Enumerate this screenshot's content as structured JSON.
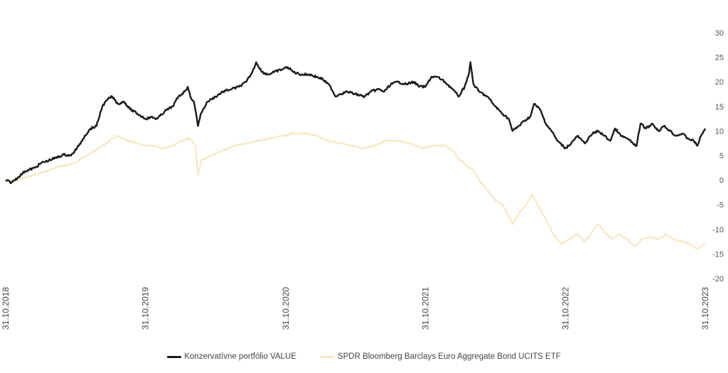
{
  "chart_data": {
    "type": "line",
    "title": "",
    "xlabel": "",
    "ylabel": "",
    "x_axis": {
      "type": "date",
      "range": [
        "2018-10-31",
        "2023-10-31"
      ],
      "tick_labels": [
        "31.10.2018",
        "31.10.2019",
        "31.10.2020",
        "31.10.2021",
        "31.10.2022",
        "31.10.2023"
      ]
    },
    "y_axis": {
      "position": "right",
      "ylim": [
        -20,
        30
      ],
      "ticks": [
        30,
        25,
        20,
        15,
        10,
        5,
        0,
        -5,
        -10,
        -15,
        -20
      ]
    },
    "grid": false,
    "legend": {
      "position": "bottom-center"
    },
    "series": [
      {
        "name": "Konzervatívne portfólio VALUE",
        "color": "#1a1a1a",
        "points": [
          [
            "2018-10-31",
            0
          ],
          [
            "2018-11-15",
            -0.5
          ],
          [
            "2018-12-01",
            0.5
          ],
          [
            "2018-12-20",
            1.8
          ],
          [
            "2019-01-15",
            2.5
          ],
          [
            "2019-02-01",
            3.5
          ],
          [
            "2019-02-20",
            4.0
          ],
          [
            "2019-03-10",
            4.5
          ],
          [
            "2019-04-01",
            5.2
          ],
          [
            "2019-04-20",
            5.0
          ],
          [
            "2019-05-10",
            7.0
          ],
          [
            "2019-05-25",
            9.0
          ],
          [
            "2019-06-10",
            10.5
          ],
          [
            "2019-06-25",
            11.0
          ],
          [
            "2019-07-10",
            15.0
          ],
          [
            "2019-07-25",
            16.5
          ],
          [
            "2019-08-05",
            17.0
          ],
          [
            "2019-08-20",
            15.5
          ],
          [
            "2019-09-05",
            16.0
          ],
          [
            "2019-09-20",
            14.5
          ],
          [
            "2019-10-10",
            13.5
          ],
          [
            "2019-10-31",
            12.5
          ],
          [
            "2019-11-15",
            12.8
          ],
          [
            "2019-12-01",
            12.5
          ],
          [
            "2019-12-20",
            14.0
          ],
          [
            "2020-01-10",
            15.0
          ],
          [
            "2020-01-25",
            17.0
          ],
          [
            "2020-02-10",
            18.0
          ],
          [
            "2020-02-18",
            19.0
          ],
          [
            "2020-02-25",
            17.0
          ],
          [
            "2020-03-05",
            16.0
          ],
          [
            "2020-03-12",
            13.0
          ],
          [
            "2020-03-16",
            11.0
          ],
          [
            "2020-03-23",
            13.5
          ],
          [
            "2020-04-10",
            16.0
          ],
          [
            "2020-05-01",
            17.0
          ],
          [
            "2020-05-20",
            18.0
          ],
          [
            "2020-06-10",
            18.5
          ],
          [
            "2020-07-01",
            19.0
          ],
          [
            "2020-07-20",
            20.0
          ],
          [
            "2020-08-05",
            22.0
          ],
          [
            "2020-08-15",
            24.0
          ],
          [
            "2020-08-30",
            22.0
          ],
          [
            "2020-09-15",
            21.5
          ],
          [
            "2020-10-01",
            22.0
          ],
          [
            "2020-10-20",
            22.5
          ],
          [
            "2020-11-05",
            23.0
          ],
          [
            "2020-11-20",
            22.0
          ],
          [
            "2020-12-10",
            21.5
          ],
          [
            "2021-01-01",
            21.5
          ],
          [
            "2021-01-20",
            21.0
          ],
          [
            "2021-02-05",
            20.5
          ],
          [
            "2021-02-25",
            19.0
          ],
          [
            "2021-03-10",
            17.0
          ],
          [
            "2021-03-20",
            17.5
          ],
          [
            "2021-04-10",
            18.0
          ],
          [
            "2021-05-01",
            17.5
          ],
          [
            "2021-05-25",
            17.0
          ],
          [
            "2021-06-10",
            18.0
          ],
          [
            "2021-06-30",
            18.5
          ],
          [
            "2021-07-15",
            18.0
          ],
          [
            "2021-08-01",
            19.5
          ],
          [
            "2021-08-20",
            20.0
          ],
          [
            "2021-09-10",
            19.5
          ],
          [
            "2021-09-30",
            20.0
          ],
          [
            "2021-10-15",
            19.0
          ],
          [
            "2021-10-31",
            19.0
          ],
          [
            "2021-11-15",
            21.0
          ],
          [
            "2021-12-01",
            21.0
          ],
          [
            "2021-12-20",
            20.0
          ],
          [
            "2022-01-10",
            18.5
          ],
          [
            "2022-01-25",
            17.0
          ],
          [
            "2022-02-10",
            19.0
          ],
          [
            "2022-02-22",
            22.0
          ],
          [
            "2022-02-25",
            24.0
          ],
          [
            "2022-03-05",
            19.5
          ],
          [
            "2022-03-20",
            18.0
          ],
          [
            "2022-04-10",
            17.0
          ],
          [
            "2022-05-01",
            15.0
          ],
          [
            "2022-05-20",
            13.5
          ],
          [
            "2022-06-05",
            12.5
          ],
          [
            "2022-06-15",
            10.0
          ],
          [
            "2022-07-01",
            11.0
          ],
          [
            "2022-07-15",
            12.0
          ],
          [
            "2022-08-01",
            13.0
          ],
          [
            "2022-08-10",
            15.5
          ],
          [
            "2022-08-25",
            14.5
          ],
          [
            "2022-09-10",
            11.5
          ],
          [
            "2022-09-25",
            10.0
          ],
          [
            "2022-10-10",
            8.0
          ],
          [
            "2022-10-31",
            6.5
          ],
          [
            "2022-11-15",
            7.5
          ],
          [
            "2022-12-01",
            9.0
          ],
          [
            "2022-12-20",
            7.5
          ],
          [
            "2023-01-10",
            9.5
          ],
          [
            "2023-01-25",
            10.0
          ],
          [
            "2023-02-10",
            9.0
          ],
          [
            "2023-02-25",
            8.0
          ],
          [
            "2023-03-10",
            10.5
          ],
          [
            "2023-03-25",
            9.0
          ],
          [
            "2023-04-10",
            8.5
          ],
          [
            "2023-04-25",
            7.5
          ],
          [
            "2023-05-05",
            7.0
          ],
          [
            "2023-05-15",
            11.5
          ],
          [
            "2023-05-30",
            10.5
          ],
          [
            "2023-06-15",
            11.5
          ],
          [
            "2023-07-01",
            10.0
          ],
          [
            "2023-07-15",
            11.0
          ],
          [
            "2023-08-01",
            10.0
          ],
          [
            "2023-08-15",
            9.0
          ],
          [
            "2023-09-01",
            9.5
          ],
          [
            "2023-09-15",
            8.5
          ],
          [
            "2023-10-01",
            8.0
          ],
          [
            "2023-10-10",
            7.0
          ],
          [
            "2023-10-20",
            9.0
          ],
          [
            "2023-10-31",
            10.5
          ]
        ]
      },
      {
        "name": "SPDR Bloomberg Barclays Euro Aggregate Bond UCITS ETF",
        "color": "#f7e8c4",
        "points": [
          [
            "2018-10-31",
            0
          ],
          [
            "2018-11-20",
            -0.3
          ],
          [
            "2018-12-20",
            0.5
          ],
          [
            "2019-01-20",
            1.2
          ],
          [
            "2019-02-20",
            2.0
          ],
          [
            "2019-03-20",
            2.8
          ],
          [
            "2019-04-20",
            3.2
          ],
          [
            "2019-05-20",
            4.5
          ],
          [
            "2019-06-20",
            6.0
          ],
          [
            "2019-07-20",
            7.5
          ],
          [
            "2019-08-15",
            9.0
          ],
          [
            "2019-08-30",
            8.5
          ],
          [
            "2019-09-15",
            8.0
          ],
          [
            "2019-10-10",
            7.5
          ],
          [
            "2019-10-31",
            7.0
          ],
          [
            "2019-11-20",
            7.0
          ],
          [
            "2019-12-15",
            6.5
          ],
          [
            "2020-01-10",
            7.0
          ],
          [
            "2020-01-31",
            8.0
          ],
          [
            "2020-02-25",
            8.5
          ],
          [
            "2020-03-09",
            7.0
          ],
          [
            "2020-03-16",
            1.0
          ],
          [
            "2020-03-25",
            4.0
          ],
          [
            "2020-04-20",
            5.0
          ],
          [
            "2020-05-20",
            6.0
          ],
          [
            "2020-06-20",
            7.0
          ],
          [
            "2020-07-20",
            7.5
          ],
          [
            "2020-08-20",
            8.0
          ],
          [
            "2020-09-20",
            8.5
          ],
          [
            "2020-10-20",
            9.0
          ],
          [
            "2020-11-20",
            9.5
          ],
          [
            "2020-12-20",
            9.5
          ],
          [
            "2021-01-20",
            9.0
          ],
          [
            "2021-02-20",
            8.0
          ],
          [
            "2021-03-20",
            7.5
          ],
          [
            "2021-04-20",
            7.0
          ],
          [
            "2021-05-20",
            6.5
          ],
          [
            "2021-06-20",
            7.0
          ],
          [
            "2021-07-20",
            8.0
          ],
          [
            "2021-08-20",
            8.0
          ],
          [
            "2021-09-20",
            7.5
          ],
          [
            "2021-10-20",
            6.5
          ],
          [
            "2021-11-20",
            7.0
          ],
          [
            "2021-12-20",
            7.0
          ],
          [
            "2022-01-10",
            6.0
          ],
          [
            "2022-01-31",
            4.0
          ],
          [
            "2022-02-15",
            3.0
          ],
          [
            "2022-03-05",
            2.0
          ],
          [
            "2022-03-20",
            0.0
          ],
          [
            "2022-04-10",
            -2.0
          ],
          [
            "2022-04-30",
            -4.0
          ],
          [
            "2022-05-20",
            -5.0
          ],
          [
            "2022-06-15",
            -9.0
          ],
          [
            "2022-06-30",
            -7.0
          ],
          [
            "2022-07-20",
            -5.0
          ],
          [
            "2022-08-05",
            -3.0
          ],
          [
            "2022-08-20",
            -5.0
          ],
          [
            "2022-09-10",
            -8.0
          ],
          [
            "2022-09-30",
            -11.0
          ],
          [
            "2022-10-20",
            -13.0
          ],
          [
            "2022-11-10",
            -12.0
          ],
          [
            "2022-11-30",
            -11.0
          ],
          [
            "2022-12-20",
            -12.5
          ],
          [
            "2023-01-10",
            -10.5
          ],
          [
            "2023-01-25",
            -9.0
          ],
          [
            "2023-02-10",
            -10.5
          ],
          [
            "2023-03-01",
            -12.0
          ],
          [
            "2023-03-20",
            -11.0
          ],
          [
            "2023-04-10",
            -12.0
          ],
          [
            "2023-04-30",
            -13.5
          ],
          [
            "2023-05-20",
            -12.0
          ],
          [
            "2023-06-10",
            -11.5
          ],
          [
            "2023-06-30",
            -12.0
          ],
          [
            "2023-07-20",
            -11.0
          ],
          [
            "2023-08-10",
            -12.0
          ],
          [
            "2023-08-30",
            -12.5
          ],
          [
            "2023-09-20",
            -13.0
          ],
          [
            "2023-10-10",
            -14.0
          ],
          [
            "2023-10-31",
            -13.0
          ]
        ]
      }
    ]
  }
}
